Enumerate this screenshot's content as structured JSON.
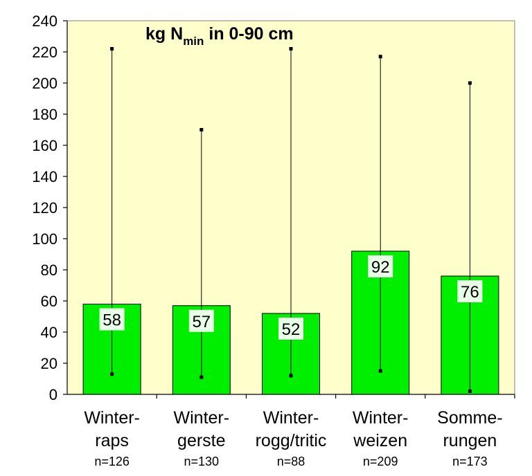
{
  "chart_data": {
    "type": "bar",
    "title_main": "kg N",
    "title_sub": "min",
    "title_rest": " in 0-90 cm",
    "categories": [
      {
        "line1": "Winter-",
        "line2": "raps",
        "n": "n=126"
      },
      {
        "line1": "Winter-",
        "line2": "gerste",
        "n": "n=130"
      },
      {
        "line1": "Winter-",
        "line2": "rogg/tritic",
        "n": "n=88"
      },
      {
        "line1": "Winter-",
        "line2": "weizen",
        "n": "n=209"
      },
      {
        "line1": "Somme-",
        "line2": "rungen",
        "n": "n=173"
      }
    ],
    "values": [
      58,
      57,
      52,
      92,
      76
    ],
    "min_values": [
      13,
      11,
      12,
      15,
      2
    ],
    "max_values": [
      222,
      170,
      222,
      217,
      200
    ],
    "ylim": [
      0,
      240
    ],
    "yticks": [
      0,
      20,
      40,
      60,
      80,
      100,
      120,
      140,
      160,
      180,
      200,
      220,
      240
    ],
    "xlabel": "",
    "ylabel": "",
    "grid": false,
    "legend": "none",
    "colors": {
      "bar": "#00ee00",
      "plot_bg": "#ffffcc",
      "label_bg": "#e8ffe8"
    }
  }
}
